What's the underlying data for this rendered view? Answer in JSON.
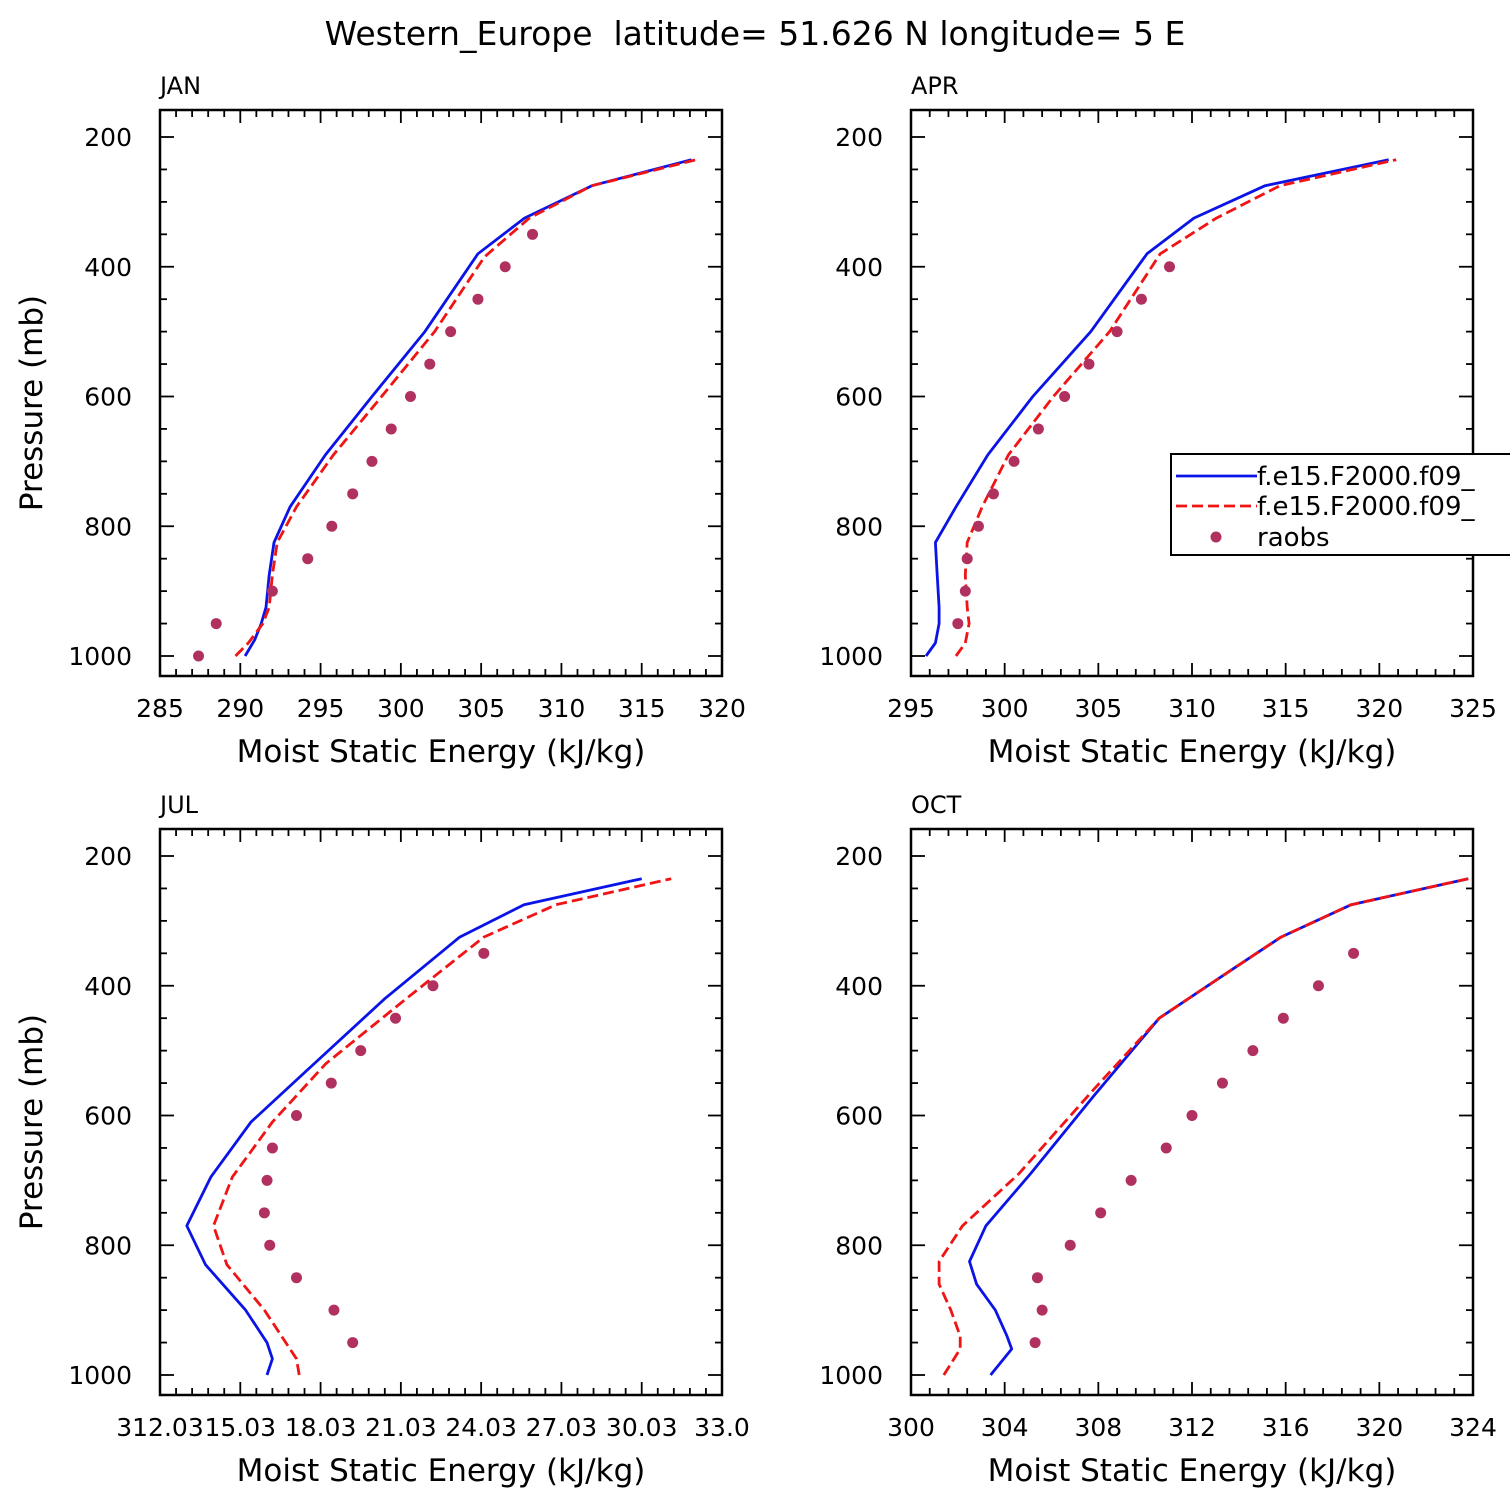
{
  "figure": {
    "title": "Western_Europe  latitude= 51.626 N longitude= 5 E"
  },
  "legend": {
    "entries": [
      {
        "label": "f.e15.F2000.f09_",
        "color": "#0a14e6",
        "style": "solid"
      },
      {
        "label": "f.e15.F2000.f09_",
        "color": "#f01414",
        "style": "dashed"
      },
      {
        "label": "raobs",
        "color": "#b03060",
        "style": "dot"
      }
    ]
  },
  "chart_data": [
    {
      "type": "line",
      "panel_label": "JAN",
      "xlabel": "Moist Static Energy (kJ/kg)",
      "ylabel": "Pressure (mb)",
      "xlim": [
        285,
        320
      ],
      "ylim": [
        1000,
        200
      ],
      "xticks": [
        "285",
        "290",
        "295",
        "300",
        "305",
        "310",
        "315",
        "320"
      ],
      "yticks": [
        "200",
        "400",
        "600",
        "800",
        "1000"
      ],
      "series": [
        {
          "style": "solid",
          "color": "#0a14e6",
          "x": [
            290.3,
            290.9,
            291.3,
            291.6,
            291.8,
            292.1,
            293.1,
            295.3,
            298.2,
            301.5,
            304.8,
            307.7,
            311.9,
            318.1
          ],
          "y": [
            1000,
            975,
            950,
            925,
            875,
            825,
            770,
            690,
            600,
            500,
            380,
            325,
            275,
            235
          ]
        },
        {
          "style": "dashed",
          "color": "#f01414",
          "x": [
            289.7,
            290.5,
            291.4,
            291.8,
            292.0,
            292.3,
            293.5,
            295.8,
            298.8,
            302.1,
            305.2,
            308.0,
            311.9,
            318.4
          ],
          "y": [
            1000,
            980,
            950,
            925,
            875,
            825,
            770,
            690,
            600,
            500,
            385,
            325,
            275,
            235
          ]
        },
        {
          "style": "dot",
          "color": "#b03060",
          "x": [
            287.4,
            288.5,
            292.0,
            294.2,
            295.7,
            297.0,
            298.2,
            299.4,
            300.6,
            301.8,
            303.1,
            304.8,
            306.5,
            308.2
          ],
          "y": [
            1000,
            950,
            900,
            850,
            800,
            750,
            700,
            650,
            600,
            550,
            500,
            450,
            400,
            350
          ]
        }
      ]
    },
    {
      "type": "line",
      "panel_label": "APR",
      "xlabel": "Moist Static Energy (kJ/kg)",
      "ylabel": "",
      "xlim": [
        295,
        325
      ],
      "ylim": [
        1000,
        200
      ],
      "xticks": [
        "295",
        "300",
        "305",
        "310",
        "315",
        "320",
        "325"
      ],
      "yticks": [
        "200",
        "400",
        "600",
        "800",
        "1000"
      ],
      "series": [
        {
          "style": "solid",
          "color": "#0a14e6",
          "x": [
            295.8,
            296.3,
            296.5,
            296.5,
            296.4,
            296.3,
            297.4,
            299.1,
            301.5,
            304.6,
            307.6,
            310.1,
            313.9,
            320.5
          ],
          "y": [
            1000,
            980,
            950,
            925,
            875,
            825,
            770,
            690,
            600,
            500,
            380,
            325,
            275,
            235
          ]
        },
        {
          "style": "dashed",
          "color": "#f01414",
          "x": [
            297.4,
            297.9,
            298.1,
            298.0,
            297.9,
            298.0,
            298.8,
            300.2,
            302.6,
            305.6,
            308.3,
            311.3,
            314.7,
            320.9
          ],
          "y": [
            1000,
            980,
            950,
            925,
            875,
            825,
            770,
            690,
            600,
            500,
            380,
            325,
            275,
            235
          ]
        },
        {
          "style": "dot",
          "color": "#b03060",
          "x": [
            297.5,
            297.9,
            298.0,
            298.6,
            299.4,
            300.5,
            301.8,
            303.2,
            304.5,
            306.0,
            307.3,
            308.8
          ],
          "y": [
            950,
            900,
            850,
            800,
            750,
            700,
            650,
            600,
            550,
            500,
            450,
            400
          ]
        }
      ]
    },
    {
      "type": "line",
      "panel_label": "JUL",
      "xlabel": "Moist Static Energy (kJ/kg)",
      "ylabel": "Pressure (mb)",
      "xlim": [
        312.0,
        333.0
      ],
      "ylim": [
        1000,
        200
      ],
      "xticks": [
        "312.03",
        "15.03",
        "18.03",
        "21.03",
        "24.03",
        "27.03",
        "30.03",
        "33.0"
      ],
      "yticks": [
        "200",
        "400",
        "600",
        "800",
        "1000"
      ],
      "series": [
        {
          "style": "solid",
          "color": "#0a14e6",
          "x": [
            316.0,
            316.2,
            316.0,
            315.2,
            313.7,
            313.0,
            313.9,
            315.4,
            317.5,
            320.4,
            323.2,
            325.6,
            330.0
          ],
          "y": [
            1000,
            975,
            950,
            900,
            830,
            770,
            695,
            610,
            530,
            420,
            325,
            275,
            235
          ]
        },
        {
          "style": "dashed",
          "color": "#f01414",
          "x": [
            317.2,
            317.1,
            316.7,
            315.9,
            314.5,
            314.0,
            314.7,
            316.2,
            318.2,
            321.2,
            324.1,
            326.8,
            331.1
          ],
          "y": [
            1000,
            975,
            950,
            900,
            830,
            770,
            695,
            610,
            520,
            420,
            325,
            275,
            235
          ]
        },
        {
          "style": "dot",
          "color": "#b03060",
          "x": [
            319.2,
            318.5,
            317.1,
            316.1,
            315.9,
            316.0,
            316.2,
            317.1,
            318.4,
            319.5,
            320.8,
            322.2,
            324.1
          ],
          "y": [
            950,
            900,
            850,
            800,
            750,
            700,
            650,
            600,
            550,
            500,
            450,
            400,
            350
          ]
        }
      ]
    },
    {
      "type": "line",
      "panel_label": "OCT",
      "xlabel": "Moist Static Energy (kJ/kg)",
      "ylabel": "",
      "xlim": [
        300,
        324
      ],
      "ylim": [
        1000,
        200
      ],
      "xticks": [
        "300",
        "304",
        "308",
        "312",
        "316",
        "320",
        "324"
      ],
      "yticks": [
        "200",
        "400",
        "600",
        "800",
        "1000"
      ],
      "series": [
        {
          "style": "solid",
          "color": "#0a14e6",
          "x": [
            303.4,
            304.3,
            304.1,
            303.6,
            302.8,
            302.5,
            303.2,
            305.1,
            307.8,
            310.6,
            313.5,
            315.8,
            318.8,
            323.8
          ],
          "y": [
            1000,
            960,
            940,
            900,
            860,
            825,
            770,
            690,
            570,
            450,
            380,
            325,
            275,
            235
          ]
        },
        {
          "style": "dashed",
          "color": "#f01414",
          "x": [
            301.4,
            302.1,
            302.1,
            301.7,
            301.2,
            301.2,
            302.2,
            304.6,
            307.8,
            310.6,
            313.5,
            315.8,
            318.8,
            323.8
          ],
          "y": [
            1000,
            960,
            940,
            900,
            860,
            825,
            770,
            690,
            560,
            450,
            380,
            325,
            275,
            235
          ]
        },
        {
          "style": "dot",
          "color": "#b03060",
          "x": [
            305.3,
            305.6,
            305.4,
            306.8,
            308.1,
            309.4,
            310.9,
            312.0,
            313.3,
            314.6,
            315.9,
            317.4,
            318.9
          ],
          "y": [
            950,
            900,
            850,
            800,
            750,
            700,
            650,
            600,
            550,
            500,
            450,
            400,
            350
          ]
        }
      ]
    }
  ]
}
